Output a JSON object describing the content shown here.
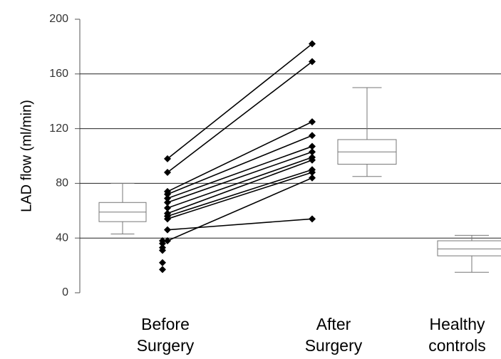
{
  "chart_data": {
    "type": "paired-box",
    "y_label": "LAD flow (ml/min)",
    "categories": [
      "Before Surgery",
      "After Surgery",
      "Healthy controls"
    ],
    "paired": {
      "before": [
        98,
        88,
        74,
        72,
        69,
        66,
        62,
        58,
        56,
        54,
        46,
        38
      ],
      "after": [
        182,
        169,
        125,
        115,
        107,
        103,
        99,
        97,
        90,
        88,
        54,
        84
      ]
    },
    "healthy": [
      38,
      36,
      33,
      31,
      22,
      17
    ],
    "boxes": [
      {
        "min": 43,
        "q1": 52,
        "median": 59,
        "q3": 66,
        "max": 80
      },
      {
        "min": 85,
        "q1": 94,
        "median": 103,
        "q3": 112,
        "max": 150
      },
      {
        "min": 15,
        "q1": 27,
        "median": 32,
        "q3": 38,
        "max": 42
      }
    ],
    "color": "#000000",
    "ylim": [
      0,
      200
    ],
    "yticks": [
      0,
      40,
      80,
      120,
      160,
      200
    ],
    "grid": true
  }
}
